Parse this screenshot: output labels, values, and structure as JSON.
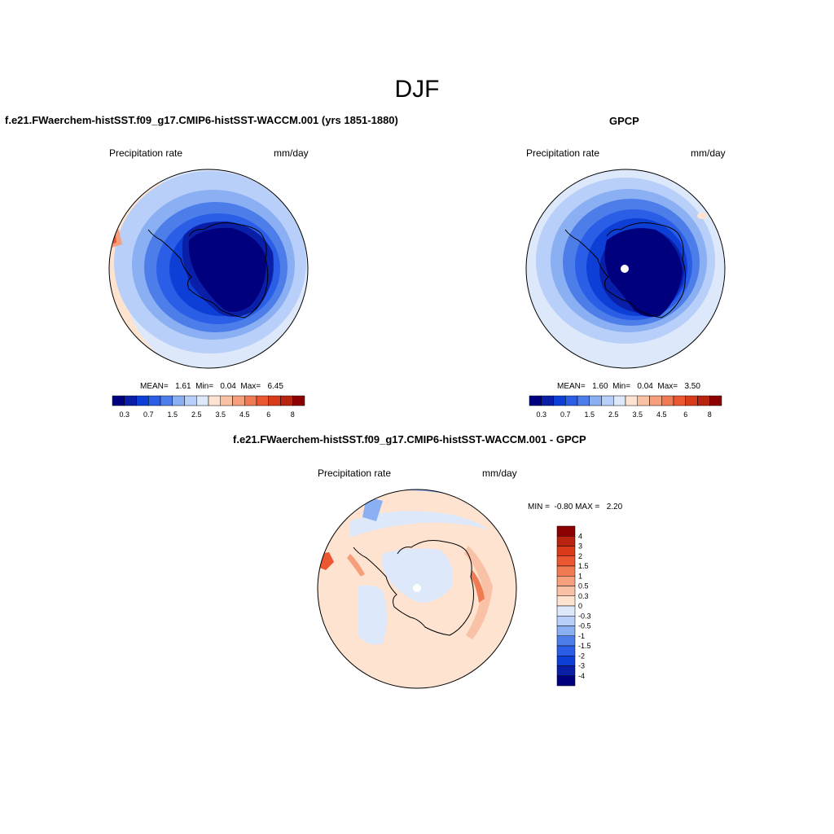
{
  "figure_title": "DJF",
  "panels": [
    {
      "title": "f.e21.FWaerchem-histSST.f09_g17.CMIP6-histSST-WACCM.001 (yrs 1851-1880)",
      "left_label": "Precipitation rate",
      "right_label": "mm/day",
      "stats": "MEAN=   1.61  Min=   0.04  Max=   6.45"
    },
    {
      "title": "GPCP",
      "left_label": "Precipitation rate",
      "right_label": "mm/day",
      "stats": "MEAN=   1.60  Min=   0.04  Max=   3.50"
    },
    {
      "title": "f.e21.FWaerchem-histSST.f09_g17.CMIP6-histSST-WACCM.001 - GPCP",
      "left_label": "Precipitation rate",
      "right_label": "mm/day",
      "stats": "MIN =  -0.80 MAX =   2.20"
    }
  ],
  "colorbar_levels": [
    "0.3",
    "0.7",
    "1.5",
    "2.5",
    "3.5",
    "4.5",
    "6",
    "8"
  ],
  "colorbar_colors": [
    "#00007f",
    "#0a1fa8",
    "#0d3fd6",
    "#2a5ee6",
    "#4c7de8",
    "#8aaff2",
    "#b8cffa",
    "#dde8fb",
    "#fde3d0",
    "#f9c2a6",
    "#f59f7c",
    "#f07a52",
    "#ea5730",
    "#d83a1a",
    "#b82410",
    "#8b0000"
  ],
  "diff_colorbar_levels": [
    "4",
    "3",
    "2",
    "1.5",
    "1",
    "0.5",
    "0.3",
    "0",
    "-0.3",
    "-0.5",
    "-1",
    "-1.5",
    "-2",
    "-3",
    "-4"
  ],
  "diff_colorbar_colors": [
    "#8b0000",
    "#b82410",
    "#d83a1a",
    "#ea5730",
    "#f07a52",
    "#f59f7c",
    "#f9c2a6",
    "#fde3d0",
    "#dde8fb",
    "#b8cffa",
    "#8aaff2",
    "#4c7de8",
    "#2a5ee6",
    "#0d3fd6",
    "#0a1fa8",
    "#00007f"
  ]
}
